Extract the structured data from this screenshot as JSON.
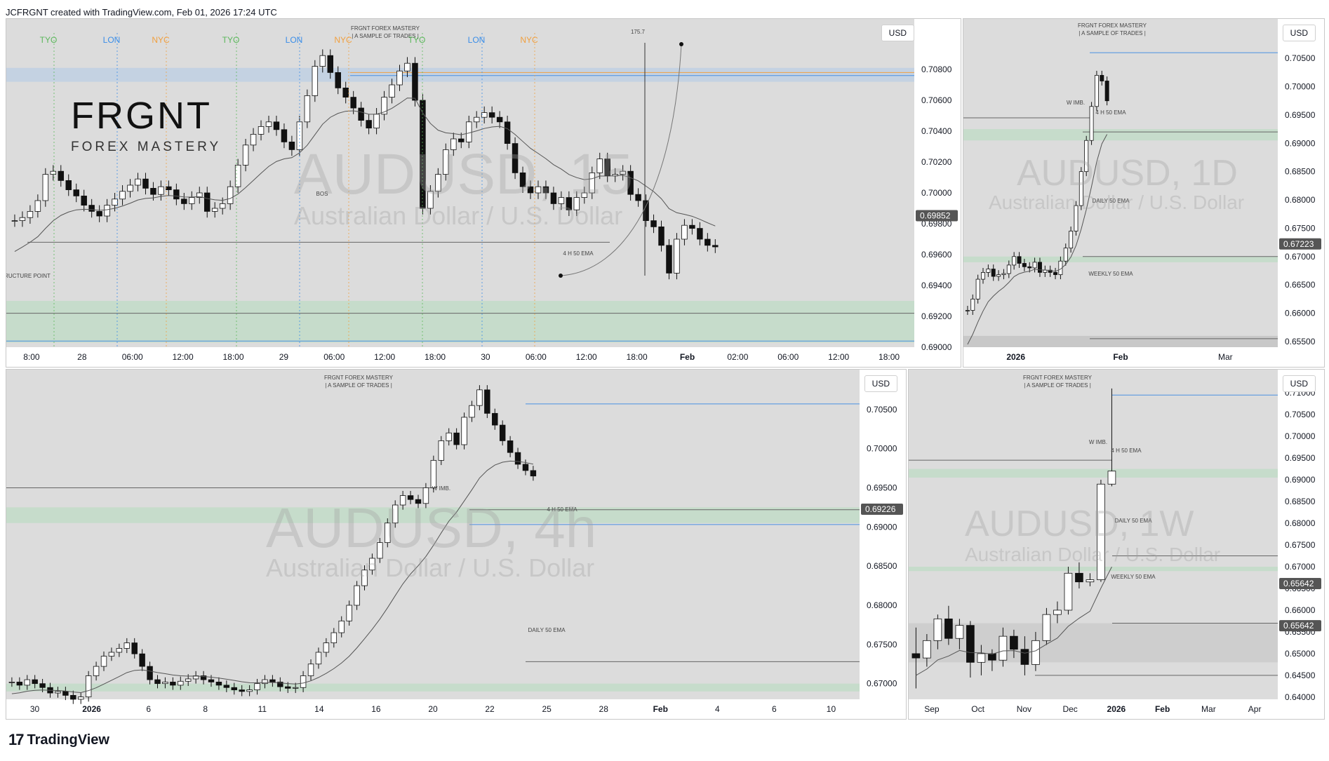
{
  "header": {
    "text": "JCFRGNT created with TradingView.com, Feb 01, 2026 17:24 UTC"
  },
  "footer": {
    "brand": "TradingView"
  },
  "brand": {
    "title": "FRGNT",
    "subtitle": "FOREX MASTERY"
  },
  "colors": {
    "panel_bg": "#dcdcdc",
    "candle": "#111111",
    "zone_green": "#b8dcc0",
    "line_blue": "#4a90e2",
    "line_orange": "#f0a040",
    "tyo": "#5cb85c",
    "lon": "#3b8ee8",
    "nyc": "#f0a040"
  },
  "chart_data": [
    {
      "panel": "15m",
      "type": "candlestick",
      "symbol_watermark": "AUDUSD, 15",
      "symbol_desc": "Australian Dollar / U.S. Dollar",
      "currency": "USD",
      "current_price_label": "0.69852",
      "y_ticks": [
        "0.70800",
        "0.70600",
        "0.70400",
        "0.70200",
        "0.70000",
        "0.69800",
        "0.69600",
        "0.69400",
        "0.69200",
        "0.69000"
      ],
      "x_ticks": [
        "8:00",
        "28",
        "06:00",
        "12:00",
        "18:00",
        "29",
        "06:00",
        "12:00",
        "18:00",
        "30",
        "06:00",
        "12:00",
        "18:00",
        "Feb",
        "02:00",
        "06:00",
        "12:00",
        "18:00"
      ],
      "session_labels": [
        "TYO",
        "LON",
        "NYC",
        "TYO",
        "LON",
        "NYC",
        "TYO",
        "LON",
        "NYC"
      ],
      "annotations": [
        "FRGNT FOREX MASTERY",
        "| A SAMPLE OF TRADES |",
        "BOS",
        "4 H 50 EMA",
        "RUCTURE POINT",
        "175.7"
      ],
      "close": [
        0.6982,
        0.6984,
        0.6988,
        0.6995,
        0.7012,
        0.7014,
        0.7008,
        0.7002,
        0.6998,
        0.6992,
        0.6988,
        0.6985,
        0.6992,
        0.6996,
        0.7001,
        0.7005,
        0.7009,
        0.7003,
        0.6999,
        0.7004,
        0.7002,
        0.6996,
        0.6993,
        0.6997,
        0.7,
        0.6988,
        0.699,
        0.6993,
        0.7004,
        0.7018,
        0.7031,
        0.7038,
        0.7043,
        0.7046,
        0.7041,
        0.7033,
        0.7028,
        0.7046,
        0.7063,
        0.7082,
        0.7089,
        0.7078,
        0.7068,
        0.7062,
        0.7055,
        0.7047,
        0.7042,
        0.7051,
        0.7062,
        0.707,
        0.7079,
        0.7084,
        0.706,
        0.699,
        0.7001,
        0.7012,
        0.7028,
        0.7035,
        0.7033,
        0.7046,
        0.7049,
        0.7052,
        0.7049,
        0.7046,
        0.7032,
        0.7013,
        0.7004,
        0.7,
        0.7004,
        0.7,
        0.6993,
        0.6997,
        0.6989,
        0.6997,
        0.7,
        0.7013,
        0.7022,
        0.7011,
        0.7012,
        0.7014,
        0.6999,
        0.6995,
        0.6982,
        0.6978,
        0.6966,
        0.6948,
        0.697,
        0.6979,
        0.6977,
        0.697,
        0.6966,
        0.6965
      ],
      "ema_label": "4 H 50 EMA",
      "right_price_label": "0.69852"
    },
    {
      "panel": "1D",
      "type": "candlestick",
      "symbol_watermark": "AUDUSD, 1D",
      "symbol_desc": "Australian Dollar / U.S. Dollar",
      "currency": "USD",
      "current_price_label": "0.67223",
      "y_ticks": [
        "0.70500",
        "0.70000",
        "0.69500",
        "0.69000",
        "0.68500",
        "0.68000",
        "0.67500",
        "0.67000",
        "0.66500",
        "0.66000",
        "0.65500"
      ],
      "x_ticks": [
        "2026",
        "Feb",
        "Mar"
      ],
      "annotations": [
        "FRGNT FOREX MASTERY",
        "| A SAMPLE OF TRADES |",
        "W IMB.",
        "4 H 50 EMA",
        "DAILY 50 EMA",
        "WEEKLY 50 EMA"
      ],
      "close": [
        0.6605,
        0.6625,
        0.666,
        0.6672,
        0.6678,
        0.6665,
        0.6668,
        0.667,
        0.6685,
        0.67,
        0.6688,
        0.6682,
        0.668,
        0.669,
        0.6672,
        0.6676,
        0.6672,
        0.6668,
        0.6692,
        0.6715,
        0.6745,
        0.679,
        0.685,
        0.6905,
        0.6965,
        0.702,
        0.701,
        0.6975
      ]
    },
    {
      "panel": "4h",
      "type": "candlestick",
      "symbol_watermark": "AUDUSD, 4h",
      "symbol_desc": "Australian Dollar / U.S. Dollar",
      "currency": "USD",
      "current_price_label": "0.69226",
      "y_ticks": [
        "0.70500",
        "0.70000",
        "0.69500",
        "0.69000",
        "0.68500",
        "0.68000",
        "0.67500",
        "0.67000"
      ],
      "x_ticks": [
        "30",
        "2026",
        "6",
        "8",
        "11",
        "14",
        "16",
        "20",
        "22",
        "25",
        "28",
        "Feb",
        "4",
        "6",
        "10"
      ],
      "annotations": [
        "FRGNT FOREX MASTERY",
        "| A SAMPLE OF TRADES |",
        "W IMB.",
        "4 H 50 EMA",
        "DAILY 50 EMA"
      ],
      "close": [
        0.6702,
        0.6698,
        0.6705,
        0.67,
        0.6695,
        0.6688,
        0.669,
        0.6685,
        0.668,
        0.6683,
        0.671,
        0.6722,
        0.6735,
        0.674,
        0.6745,
        0.6752,
        0.6738,
        0.6722,
        0.6705,
        0.67,
        0.6702,
        0.6698,
        0.6703,
        0.6706,
        0.671,
        0.6705,
        0.6702,
        0.6698,
        0.6695,
        0.6692,
        0.669,
        0.6692,
        0.67,
        0.6705,
        0.6702,
        0.6696,
        0.6694,
        0.6695,
        0.671,
        0.6725,
        0.674,
        0.6752,
        0.6765,
        0.678,
        0.68,
        0.6825,
        0.6845,
        0.686,
        0.688,
        0.6905,
        0.6928,
        0.694,
        0.6935,
        0.693,
        0.695,
        0.6985,
        0.701,
        0.702,
        0.7005,
        0.704,
        0.7055,
        0.7075,
        0.7045,
        0.703,
        0.701,
        0.6995,
        0.698,
        0.6972,
        0.6965
      ]
    },
    {
      "panel": "1W",
      "type": "candlestick",
      "symbol_watermark": "AUDUSD, 1W",
      "symbol_desc": "Australian Dollar / U.S. Dollar",
      "currency": "USD",
      "current_price_labels": [
        "0.65642",
        "0.65642"
      ],
      "y_ticks": [
        "0.71000",
        "0.70500",
        "0.70000",
        "0.69500",
        "0.69000",
        "0.68500",
        "0.68000",
        "0.67500",
        "0.67000",
        "0.66500",
        "0.66000",
        "0.65500",
        "0.65000",
        "0.64500",
        "0.64000"
      ],
      "x_ticks": [
        "Sep",
        "Oct",
        "Nov",
        "Dec",
        "2026",
        "Feb",
        "Mar",
        "Apr"
      ],
      "annotations": [
        "FRGNT FOREX MASTERY",
        "| A SAMPLE OF TRADES |",
        "W IMB.",
        "4 H 50 EMA",
        "DAILY 50 EMA",
        "WEEKLY 50 EMA"
      ],
      "ohlc": [
        [
          0.65,
          0.656,
          0.642,
          0.649
        ],
        [
          0.649,
          0.6545,
          0.647,
          0.653
        ],
        [
          0.653,
          0.659,
          0.651,
          0.658
        ],
        [
          0.658,
          0.661,
          0.652,
          0.6535
        ],
        [
          0.6535,
          0.658,
          0.651,
          0.6565
        ],
        [
          0.6565,
          0.6575,
          0.6445,
          0.648
        ],
        [
          0.648,
          0.652,
          0.645,
          0.65
        ],
        [
          0.65,
          0.651,
          0.646,
          0.6485
        ],
        [
          0.6485,
          0.656,
          0.647,
          0.654
        ],
        [
          0.654,
          0.6555,
          0.649,
          0.651
        ],
        [
          0.651,
          0.654,
          0.645,
          0.6475
        ],
        [
          0.6475,
          0.655,
          0.646,
          0.653
        ],
        [
          0.653,
          0.6605,
          0.652,
          0.659
        ],
        [
          0.659,
          0.662,
          0.657,
          0.66
        ],
        [
          0.66,
          0.67,
          0.659,
          0.6685
        ],
        [
          0.6685,
          0.671,
          0.665,
          0.6665
        ],
        [
          0.6665,
          0.6685,
          0.6655,
          0.667
        ],
        [
          0.667,
          0.69,
          0.6665,
          0.689
        ],
        [
          0.689,
          0.711,
          0.6885,
          0.692
        ]
      ]
    }
  ]
}
